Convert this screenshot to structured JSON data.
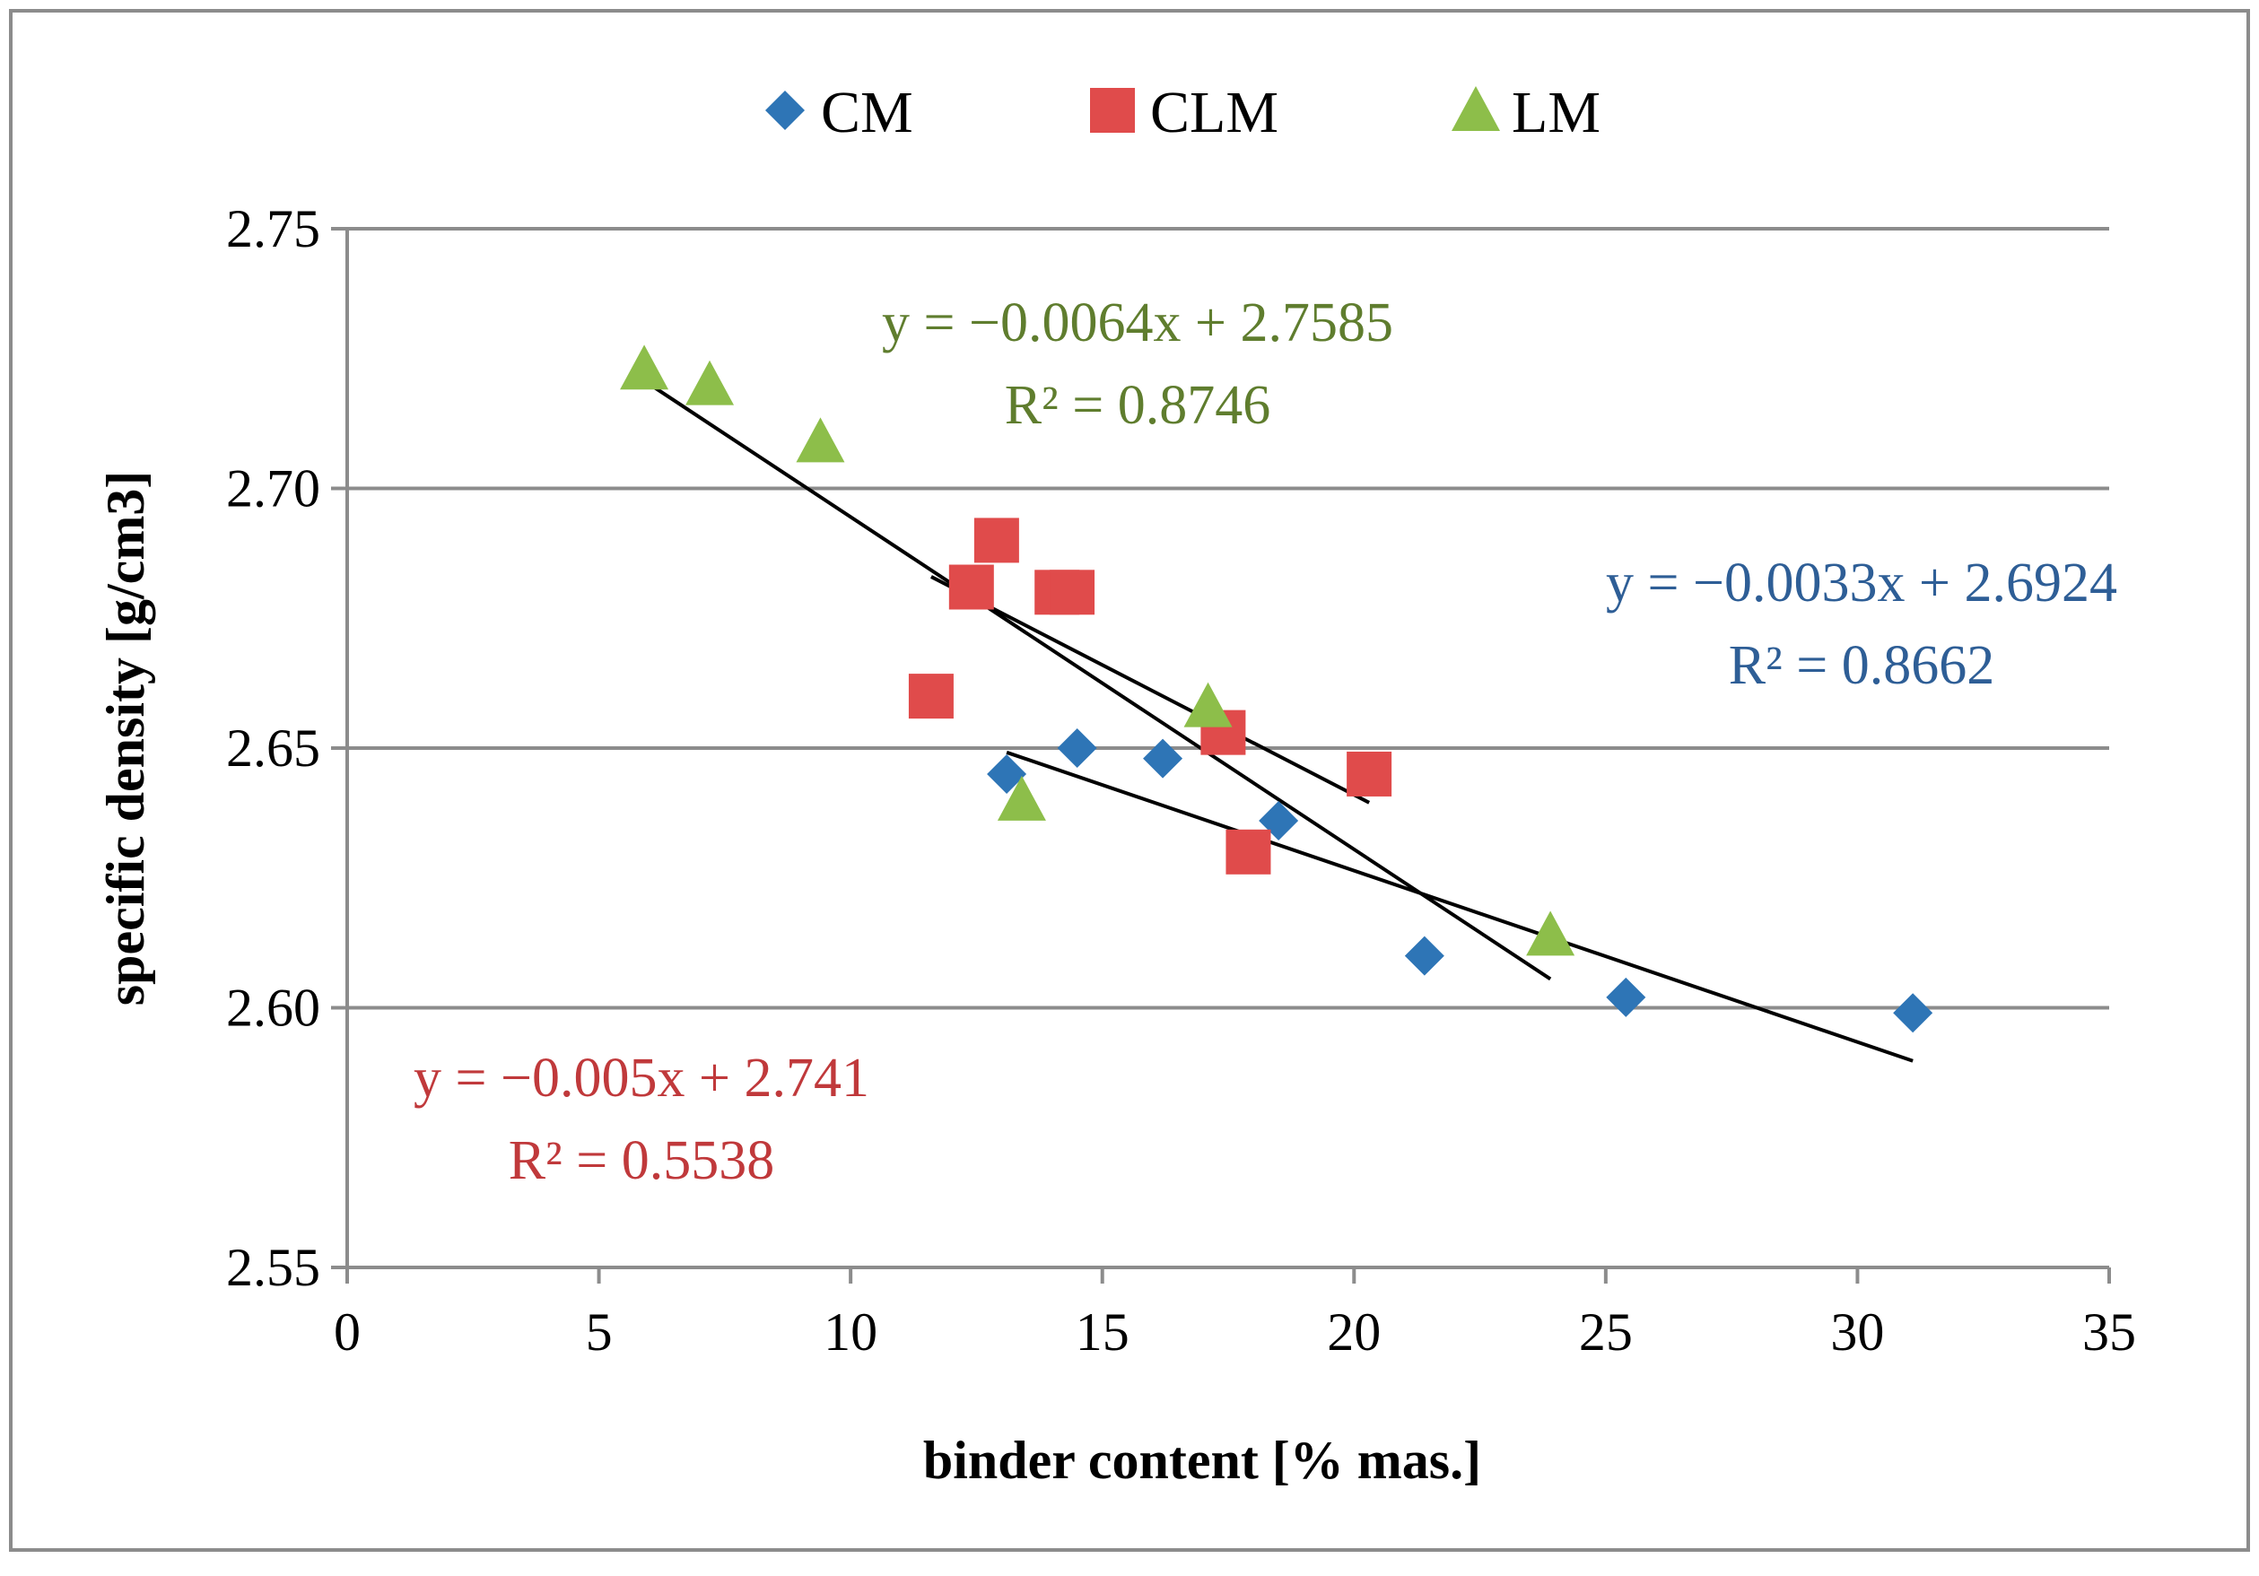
{
  "chart_data": {
    "type": "scatter",
    "xlabel": "binder content [% mas.]",
    "ylabel": "specific density [g/cm3]",
    "xlim": [
      0,
      35
    ],
    "ylim": [
      2.55,
      2.75
    ],
    "xticks": [
      0,
      5,
      10,
      15,
      20,
      25,
      30,
      35
    ],
    "xtick_labels": [
      "0",
      "5",
      "10",
      "15",
      "20",
      "25",
      "30",
      "35"
    ],
    "yticks": [
      2.55,
      2.6,
      2.65,
      2.7,
      2.75
    ],
    "ytick_labels": [
      "2.55",
      "2.60",
      "2.65",
      "2.70",
      "2.75"
    ],
    "grid": "horizontal",
    "legend_position": "top",
    "series": [
      {
        "name": "CM",
        "marker": "diamond",
        "color": "#2E75B6",
        "x": [
          13.1,
          14.5,
          16.2,
          18.5,
          21.4,
          25.4,
          31.1
        ],
        "y": [
          2.645,
          2.65,
          2.648,
          2.636,
          2.61,
          2.602,
          2.599
        ],
        "trendline": {
          "slope": -0.0033,
          "intercept": 2.6924,
          "x_range": [
            13.1,
            31.1
          ]
        },
        "equation": "y = −0.0033x + 2.6924",
        "r2": "R² = 0.8662",
        "label_color": "#2E5E96"
      },
      {
        "name": "CLM",
        "marker": "square",
        "color": "#E04B4B",
        "x": [
          11.6,
          12.4,
          12.9,
          14.1,
          14.4,
          17.4,
          17.9,
          20.3
        ],
        "y": [
          2.66,
          2.681,
          2.69,
          2.68,
          2.68,
          2.653,
          2.63,
          2.645
        ],
        "trendline": {
          "slope": -0.005,
          "intercept": 2.741,
          "x_range": [
            11.6,
            20.3
          ]
        },
        "equation": "y = −0.005x + 2.741",
        "r2": "R² = 0.5538",
        "label_color": "#C0393B"
      },
      {
        "name": "LM",
        "marker": "triangle",
        "color": "#8DBE4A",
        "x": [
          5.9,
          7.2,
          9.4,
          13.4,
          17.1,
          23.9
        ],
        "y": [
          2.723,
          2.72,
          2.709,
          2.64,
          2.658,
          2.614
        ],
        "trendline": {
          "slope": -0.0064,
          "intercept": 2.7585,
          "x_range": [
            5.9,
            23.9
          ]
        },
        "equation": "y = −0.0064x + 2.7585",
        "r2": "R² = 0.8746",
        "label_color": "#5F7D2E"
      }
    ]
  }
}
